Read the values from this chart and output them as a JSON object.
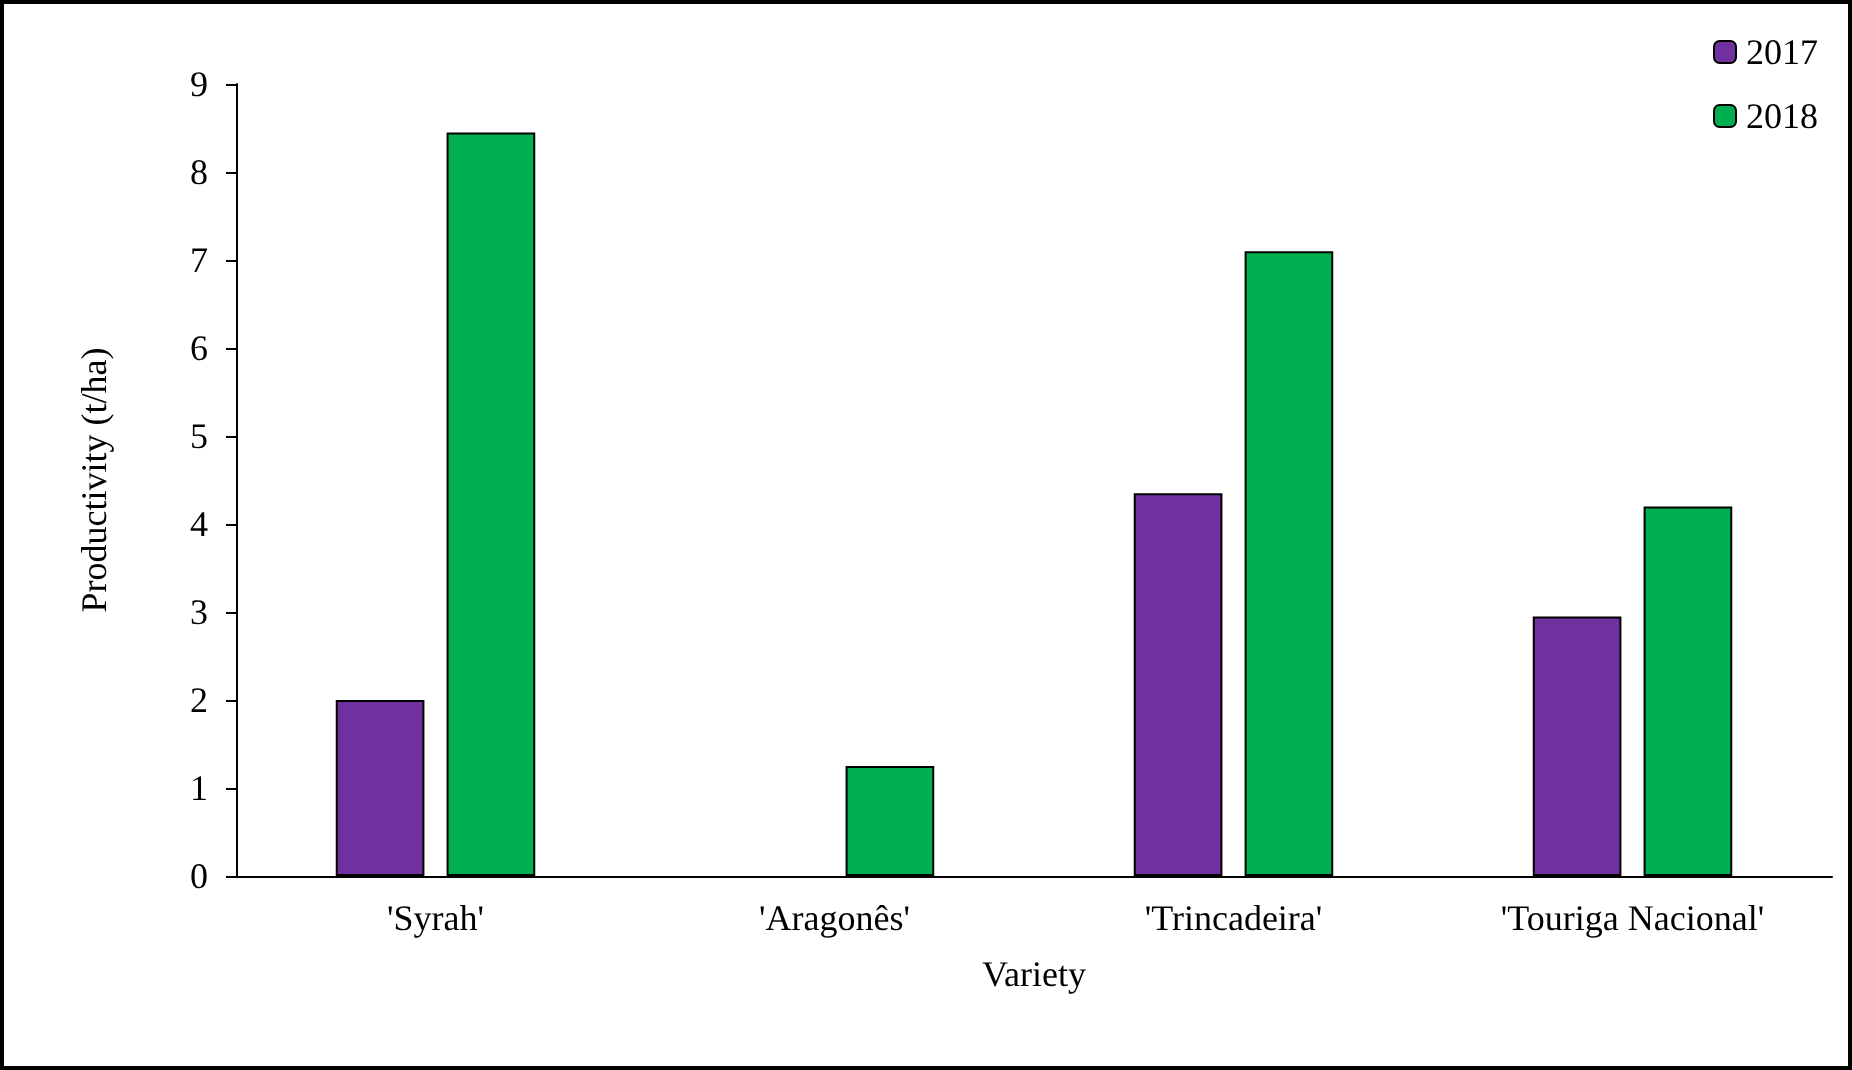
{
  "chart_data": {
    "type": "bar",
    "xlabel": "Variety",
    "ylabel": "Productivity (t/ha)",
    "categories": [
      "'Syrah'",
      "'Aragonês'",
      "'Trincadeira'",
      "'Touriga Nacional'"
    ],
    "series": [
      {
        "name": "2017",
        "color": "#7030a0",
        "values": [
          2.0,
          null,
          4.35,
          2.95
        ]
      },
      {
        "name": "2018",
        "color": "#00b050",
        "values": [
          8.45,
          1.25,
          7.1,
          4.2
        ]
      }
    ],
    "ylim": [
      0,
      9
    ],
    "yticks": [
      0,
      1,
      2,
      3,
      4,
      5,
      6,
      7,
      8,
      9
    ],
    "grid": false,
    "legend": "top right"
  }
}
